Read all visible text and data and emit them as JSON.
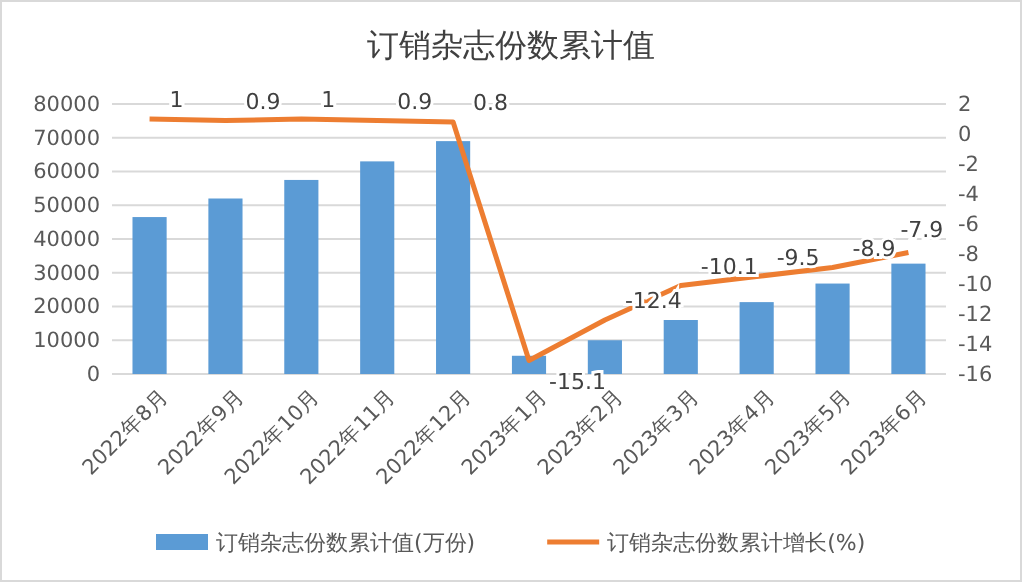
{
  "chart_data": {
    "type": "bar",
    "title": "订销杂志份数累计值",
    "categories": [
      "2022年8月",
      "2022年9月",
      "2022年10月",
      "2022年11月",
      "2022年12月",
      "2023年1月",
      "2023年2月",
      "2023年3月",
      "2023年4月",
      "2023年5月",
      "2023年6月"
    ],
    "series": [
      {
        "name": "订销杂志份数累计值(万份)",
        "color": "#5b9bd5",
        "values": [
          46500,
          52000,
          57500,
          63000,
          69000,
          5400,
          10000,
          16000,
          21300,
          26800,
          32700
        ]
      },
      {
        "name": "订销杂志份数累计增长(%)",
        "type": "line",
        "axis": "y2",
        "color": "#ed7d31",
        "values": [
          1,
          0.9,
          1,
          0.9,
          0.8,
          -15.1,
          -12.4,
          -10.1,
          -9.5,
          -8.9,
          -7.9
        ],
        "value_labels": [
          "1",
          "0.9",
          "1",
          "0.9",
          "0.8",
          "-15.1",
          "-12.4",
          "-10.1",
          "-9.5",
          "-8.9",
          "-7.9"
        ]
      }
    ],
    "ylim": [
      0,
      80000
    ],
    "yticks": [
      0,
      10000,
      20000,
      30000,
      40000,
      50000,
      60000,
      70000,
      80000
    ],
    "y2lim": [
      -16,
      2
    ],
    "y2ticks": [
      -16,
      -14,
      -12,
      -10,
      -8,
      -6,
      -4,
      -2,
      0,
      2
    ],
    "grid": "y",
    "legend": "bottom",
    "marker": "none",
    "line_style": "solid"
  }
}
